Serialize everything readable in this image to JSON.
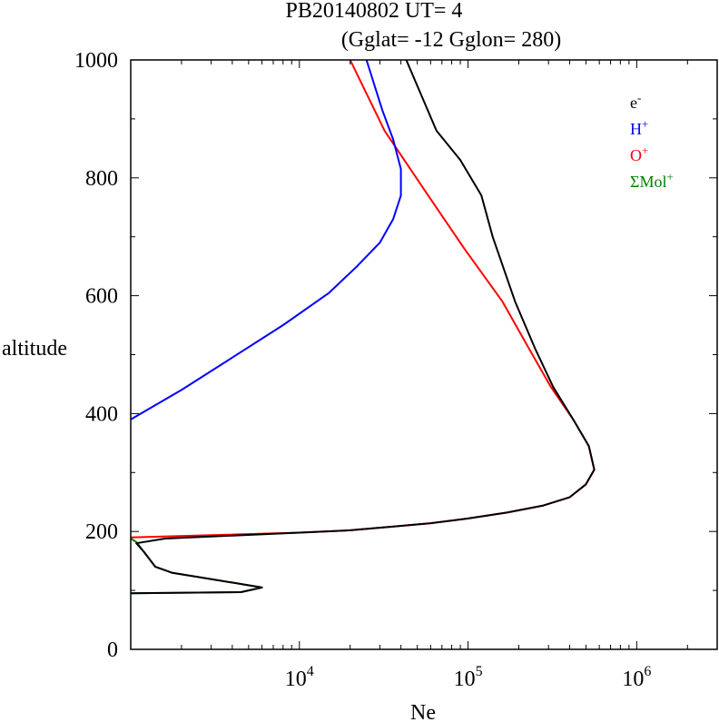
{
  "chart_data": {
    "type": "line",
    "title": "PB20140802   UT=  4",
    "subtitle": "(Gglat= -12   Gglon=  280)",
    "xlabel": "Ne",
    "ylabel": "altitude",
    "xscale": "log",
    "xlim": [
      1000,
      3000000
    ],
    "ylim": [
      0,
      1000
    ],
    "y_ticks": [
      0,
      200,
      400,
      600,
      800,
      1000
    ],
    "x_ticks": [
      {
        "base": "10",
        "exp": "4",
        "value": 10000
      },
      {
        "base": "10",
        "exp": "5",
        "value": 100000
      },
      {
        "base": "10",
        "exp": "6",
        "value": 1000000
      }
    ],
    "legend_position": "top-right",
    "legend": [
      {
        "base": "e",
        "sup": "-",
        "color": "#000000"
      },
      {
        "base": "H",
        "sup": "+",
        "color": "#0000ff"
      },
      {
        "base": "O",
        "sup": "+",
        "color": "#ff0000"
      },
      {
        "base": "ΣMol",
        "sup": "+",
        "color": "#008000"
      }
    ],
    "series": [
      {
        "key": "o-plus",
        "color": "#ff0000",
        "points": [
          [
            1000,
            190
          ],
          [
            10000,
            198
          ],
          [
            20000,
            202
          ],
          [
            35000,
            208
          ],
          [
            60000,
            214
          ],
          [
            100000,
            222
          ],
          [
            170000,
            232
          ],
          [
            280000,
            244
          ],
          [
            400000,
            258
          ],
          [
            500000,
            280
          ],
          [
            560000,
            305
          ],
          [
            520000,
            345
          ],
          [
            420000,
            390
          ],
          [
            310000,
            445
          ],
          [
            230000,
            510
          ],
          [
            160000,
            590
          ],
          [
            95000,
            680
          ],
          [
            55000,
            780
          ],
          [
            32000,
            880
          ],
          [
            20000,
            1000
          ]
        ]
      },
      {
        "key": "h-plus",
        "color": "#0000ff",
        "points": [
          [
            1000,
            390
          ],
          [
            2000,
            440
          ],
          [
            4000,
            495
          ],
          [
            8000,
            550
          ],
          [
            15000,
            605
          ],
          [
            22000,
            650
          ],
          [
            30000,
            690
          ],
          [
            36000,
            730
          ],
          [
            40000,
            770
          ],
          [
            40000,
            815
          ],
          [
            36000,
            865
          ],
          [
            31000,
            915
          ],
          [
            25000,
            1000
          ]
        ]
      },
      {
        "key": "mol-plus",
        "color": "#008000",
        "points": [
          [
            1000,
            188
          ],
          [
            1080,
            182
          ],
          [
            1200,
            165
          ],
          [
            1400,
            140
          ],
          [
            1750,
            130
          ],
          [
            4700,
            110
          ],
          [
            6000,
            105
          ],
          [
            4500,
            97
          ],
          [
            1000,
            95
          ]
        ]
      },
      {
        "key": "e-minus",
        "color": "#000000",
        "points": [
          [
            1000,
            95
          ],
          [
            4500,
            97
          ],
          [
            6000,
            105
          ],
          [
            4700,
            110
          ],
          [
            1750,
            130
          ],
          [
            1400,
            140
          ],
          [
            1200,
            165
          ],
          [
            1080,
            180
          ],
          [
            1600,
            188
          ],
          [
            10000,
            198
          ],
          [
            20000,
            202
          ],
          [
            35000,
            208
          ],
          [
            60000,
            214
          ],
          [
            100000,
            222
          ],
          [
            170000,
            232
          ],
          [
            280000,
            244
          ],
          [
            400000,
            258
          ],
          [
            500000,
            280
          ],
          [
            560000,
            305
          ],
          [
            520000,
            345
          ],
          [
            420000,
            390
          ],
          [
            320000,
            445
          ],
          [
            250000,
            510
          ],
          [
            190000,
            590
          ],
          [
            170000,
            630
          ],
          [
            140000,
            700
          ],
          [
            120000,
            770
          ],
          [
            90000,
            830
          ],
          [
            65000,
            880
          ],
          [
            43000,
            1000
          ]
        ]
      }
    ]
  }
}
